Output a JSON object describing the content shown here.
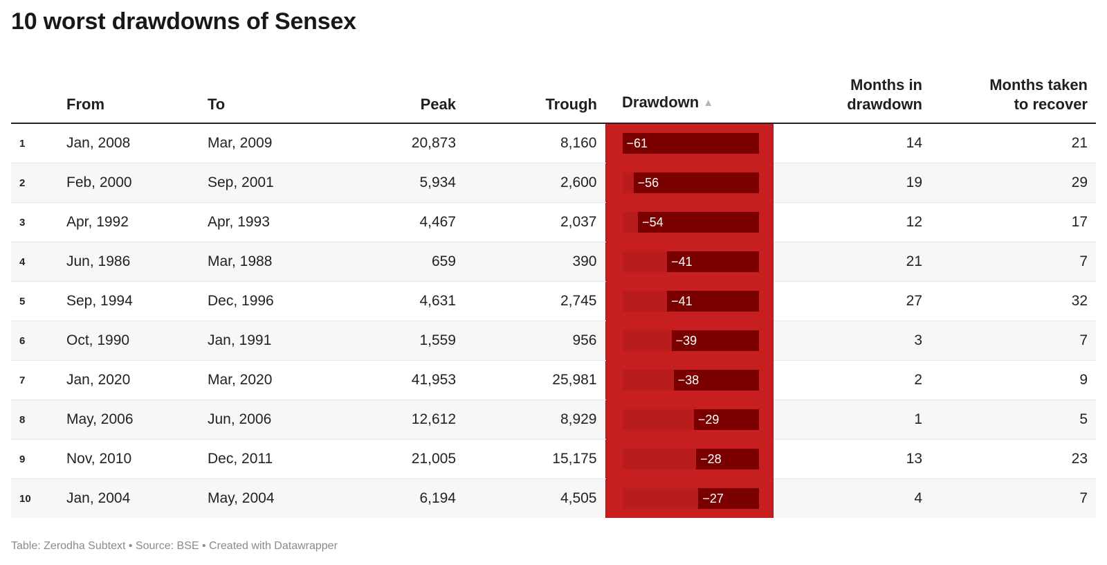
{
  "title": "10 worst drawdowns of Sensex",
  "columns": {
    "from": "From",
    "to": "To",
    "peak": "Peak",
    "trough": "Trough",
    "drawdown": "Drawdown",
    "months_line1": "Months in",
    "months_line2": "drawdown",
    "recover_line1": "Months taken",
    "recover_line2": "to recover"
  },
  "sort_indicator": "▲",
  "colors": {
    "drawdown_column_bg": "#c71f1f",
    "bar_track": "#b81c1c",
    "bar_fill": "#7a0000"
  },
  "chart_data": {
    "type": "table",
    "bar_scale_max": 61,
    "rows": [
      {
        "rank": "1",
        "from": "Jan, 2008",
        "to": "Mar, 2009",
        "peak": "20,873",
        "trough": "8,160",
        "drawdown": -61,
        "drawdown_label": "−61",
        "months": "14",
        "recover": "21"
      },
      {
        "rank": "2",
        "from": "Feb, 2000",
        "to": "Sep, 2001",
        "peak": "5,934",
        "trough": "2,600",
        "drawdown": -56,
        "drawdown_label": "−56",
        "months": "19",
        "recover": "29"
      },
      {
        "rank": "3",
        "from": "Apr, 1992",
        "to": "Apr, 1993",
        "peak": "4,467",
        "trough": "2,037",
        "drawdown": -54,
        "drawdown_label": "−54",
        "months": "12",
        "recover": "17"
      },
      {
        "rank": "4",
        "from": "Jun, 1986",
        "to": "Mar, 1988",
        "peak": "659",
        "trough": "390",
        "drawdown": -41,
        "drawdown_label": "−41",
        "months": "21",
        "recover": "7"
      },
      {
        "rank": "5",
        "from": "Sep, 1994",
        "to": "Dec, 1996",
        "peak": "4,631",
        "trough": "2,745",
        "drawdown": -41,
        "drawdown_label": "−41",
        "months": "27",
        "recover": "32"
      },
      {
        "rank": "6",
        "from": "Oct, 1990",
        "to": "Jan, 1991",
        "peak": "1,559",
        "trough": "956",
        "drawdown": -39,
        "drawdown_label": "−39",
        "months": "3",
        "recover": "7"
      },
      {
        "rank": "7",
        "from": "Jan, 2020",
        "to": "Mar, 2020",
        "peak": "41,953",
        "trough": "25,981",
        "drawdown": -38,
        "drawdown_label": "−38",
        "months": "2",
        "recover": "9"
      },
      {
        "rank": "8",
        "from": "May, 2006",
        "to": "Jun, 2006",
        "peak": "12,612",
        "trough": "8,929",
        "drawdown": -29,
        "drawdown_label": "−29",
        "months": "1",
        "recover": "5"
      },
      {
        "rank": "9",
        "from": "Nov, 2010",
        "to": "Dec, 2011",
        "peak": "21,005",
        "trough": "15,175",
        "drawdown": -28,
        "drawdown_label": "−28",
        "months": "13",
        "recover": "23"
      },
      {
        "rank": "10",
        "from": "Jan, 2004",
        "to": "May, 2004",
        "peak": "6,194",
        "trough": "4,505",
        "drawdown": -27,
        "drawdown_label": "−27",
        "months": "4",
        "recover": "7"
      }
    ]
  },
  "footer": "Table: Zerodha Subtext • Source: BSE • Created with Datawrapper"
}
